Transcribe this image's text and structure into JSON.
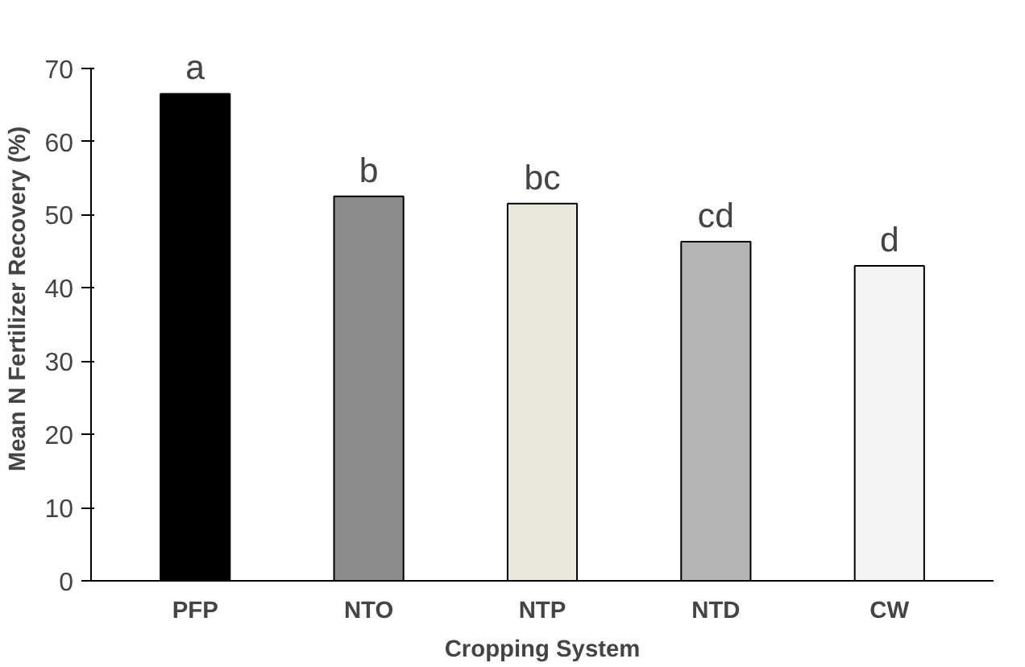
{
  "chart_data": {
    "type": "bar",
    "xlabel": "Cropping System",
    "ylabel": "Mean N Fertilizer Recovery (%)",
    "categories": [
      "PFP",
      "NTO",
      "NTP",
      "NTD",
      "CW"
    ],
    "values": [
      66.5,
      52.5,
      51.5,
      46.3,
      43.0
    ],
    "colors": [
      "#000000",
      "#8c8c8c",
      "#e8e8dc",
      "#b4b4b4",
      "#f4f4f4"
    ],
    "value_labels": [
      "a",
      "b",
      "bc",
      "cd",
      "d"
    ],
    "ylim": [
      0,
      70
    ],
    "yticks": [
      0,
      10,
      20,
      30,
      40,
      50,
      60,
      70
    ],
    "grid": false
  }
}
